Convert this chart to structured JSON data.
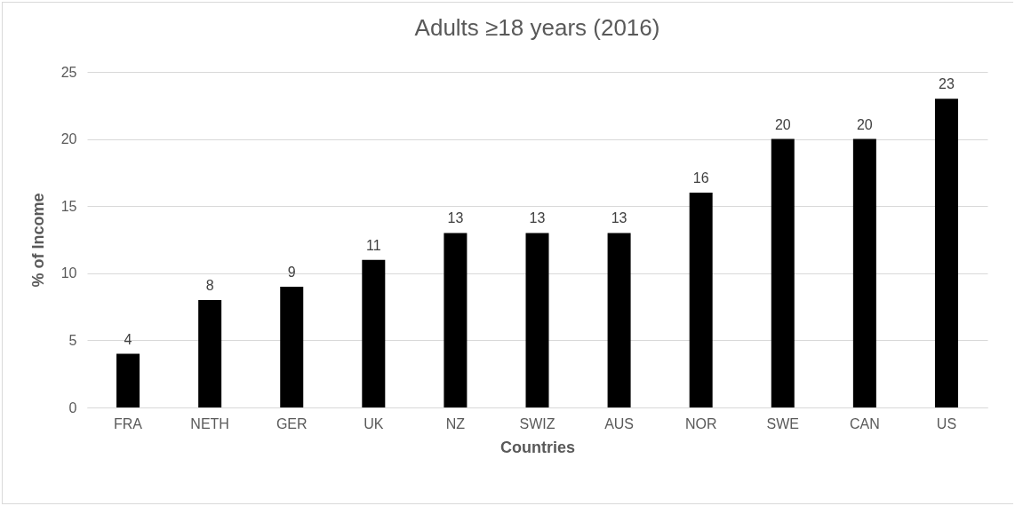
{
  "chart_data": {
    "type": "bar",
    "title": "Adults ≥18 years (2016)",
    "xlabel": "Countries",
    "ylabel": "% of Income",
    "categories": [
      "FRA",
      "NETH",
      "GER",
      "UK",
      "NZ",
      "SWIZ",
      "AUS",
      "NOR",
      "SWE",
      "CAN",
      "US"
    ],
    "values": [
      4,
      8,
      9,
      11,
      13,
      13,
      13,
      16,
      20,
      20,
      23
    ],
    "color": "#000000",
    "ylim": [
      0,
      25
    ],
    "yticks": [
      0,
      5,
      10,
      15,
      20,
      25
    ],
    "grid": "y",
    "data_labels": true
  }
}
